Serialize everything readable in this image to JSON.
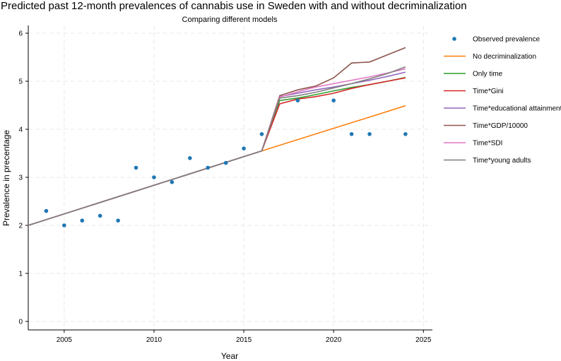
{
  "chart_data": {
    "type": "line",
    "title": "Predicted past 12-month prevalences of cannabis use in Sweden with and without decriminalization",
    "subtitle": "Comparing different models",
    "xlabel": "Year",
    "ylabel": "Prevalence in precentage",
    "xlim": [
      2003,
      2025.5
    ],
    "ylim": [
      0,
      6
    ],
    "x_ticks": [
      2005,
      2010,
      2015,
      2020,
      2025
    ],
    "y_ticks": [
      0,
      1,
      2,
      3,
      4,
      5,
      6
    ],
    "grid": true,
    "legend_position": "right",
    "observed": {
      "name": "Observed prevalence",
      "color": "#1f77b4",
      "points": [
        {
          "x": 2004,
          "y": 2.3
        },
        {
          "x": 2005,
          "y": 2.0
        },
        {
          "x": 2006,
          "y": 2.1
        },
        {
          "x": 2007,
          "y": 2.2
        },
        {
          "x": 2008,
          "y": 2.1
        },
        {
          "x": 2009,
          "y": 3.2
        },
        {
          "x": 2010,
          "y": 3.0
        },
        {
          "x": 2011,
          "y": 2.9
        },
        {
          "x": 2012,
          "y": 3.4
        },
        {
          "x": 2013,
          "y": 3.2
        },
        {
          "x": 2014,
          "y": 3.3
        },
        {
          "x": 2015,
          "y": 3.6
        },
        {
          "x": 2016,
          "y": 3.9
        },
        {
          "x": 2018,
          "y": 4.6
        },
        {
          "x": 2020,
          "y": 4.6
        },
        {
          "x": 2021,
          "y": 3.9
        },
        {
          "x": 2022,
          "y": 3.9
        },
        {
          "x": 2024,
          "y": 3.9
        }
      ]
    },
    "series": [
      {
        "name": "No decriminalization",
        "color": "#ff7f0e",
        "points": [
          {
            "x": 2003,
            "y": 2.0
          },
          {
            "x": 2016,
            "y": 3.55
          },
          {
            "x": 2024,
            "y": 4.49
          }
        ]
      },
      {
        "name": "Only time",
        "color": "#2ca02c",
        "points": [
          {
            "x": 2003,
            "y": 2.0
          },
          {
            "x": 2016,
            "y": 3.55
          },
          {
            "x": 2017,
            "y": 4.6
          },
          {
            "x": 2018,
            "y": 4.65
          },
          {
            "x": 2019,
            "y": 4.72
          },
          {
            "x": 2020,
            "y": 4.8
          },
          {
            "x": 2021,
            "y": 4.87
          },
          {
            "x": 2022,
            "y": 4.93
          },
          {
            "x": 2023,
            "y": 5.0
          },
          {
            "x": 2024,
            "y": 5.08
          }
        ]
      },
      {
        "name": "Time*Gini",
        "color": "#d62728",
        "points": [
          {
            "x": 2003,
            "y": 2.0
          },
          {
            "x": 2016,
            "y": 3.55
          },
          {
            "x": 2017,
            "y": 4.53
          },
          {
            "x": 2018,
            "y": 4.63
          },
          {
            "x": 2019,
            "y": 4.68
          },
          {
            "x": 2020,
            "y": 4.75
          },
          {
            "x": 2021,
            "y": 4.85
          },
          {
            "x": 2022,
            "y": 4.93
          },
          {
            "x": 2023,
            "y": 5.0
          },
          {
            "x": 2024,
            "y": 5.07
          }
        ]
      },
      {
        "name": "Time*educational attainment",
        "color": "#9467bd",
        "points": [
          {
            "x": 2003,
            "y": 2.0
          },
          {
            "x": 2016,
            "y": 3.55
          },
          {
            "x": 2017,
            "y": 4.68
          },
          {
            "x": 2018,
            "y": 4.75
          },
          {
            "x": 2019,
            "y": 4.82
          },
          {
            "x": 2020,
            "y": 4.88
          },
          {
            "x": 2021,
            "y": 4.95
          },
          {
            "x": 2022,
            "y": 5.02
          },
          {
            "x": 2023,
            "y": 5.1
          },
          {
            "x": 2024,
            "y": 5.19
          }
        ]
      },
      {
        "name": "Time*GDP/10000",
        "color": "#8c564b",
        "points": [
          {
            "x": 2003,
            "y": 2.0
          },
          {
            "x": 2016,
            "y": 3.55
          },
          {
            "x": 2017,
            "y": 4.7
          },
          {
            "x": 2018,
            "y": 4.82
          },
          {
            "x": 2019,
            "y": 4.9
          },
          {
            "x": 2020,
            "y": 5.07
          },
          {
            "x": 2021,
            "y": 5.38
          },
          {
            "x": 2022,
            "y": 5.4
          },
          {
            "x": 2023,
            "y": 5.55
          },
          {
            "x": 2024,
            "y": 5.7
          }
        ]
      },
      {
        "name": "Time*SDI",
        "color": "#e377c2",
        "points": [
          {
            "x": 2003,
            "y": 2.0
          },
          {
            "x": 2016,
            "y": 3.55
          },
          {
            "x": 2017,
            "y": 4.67
          },
          {
            "x": 2018,
            "y": 4.78
          },
          {
            "x": 2019,
            "y": 4.88
          },
          {
            "x": 2020,
            "y": 4.95
          },
          {
            "x": 2021,
            "y": 5.02
          },
          {
            "x": 2022,
            "y": 5.09
          },
          {
            "x": 2023,
            "y": 5.17
          },
          {
            "x": 2024,
            "y": 5.26
          }
        ]
      },
      {
        "name": "Time*young adults",
        "color": "#7f7f7f",
        "points": [
          {
            "x": 2003,
            "y": 2.0
          },
          {
            "x": 2016,
            "y": 3.55
          },
          {
            "x": 2017,
            "y": 4.65
          },
          {
            "x": 2018,
            "y": 4.7
          },
          {
            "x": 2019,
            "y": 4.77
          },
          {
            "x": 2020,
            "y": 4.86
          },
          {
            "x": 2021,
            "y": 4.95
          },
          {
            "x": 2022,
            "y": 5.05
          },
          {
            "x": 2023,
            "y": 5.16
          },
          {
            "x": 2024,
            "y": 5.3
          }
        ]
      }
    ]
  }
}
